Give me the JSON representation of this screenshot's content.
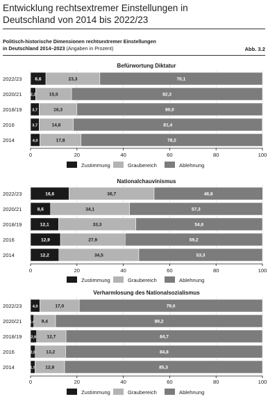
{
  "header": {
    "title_line1": "Entwicklung rechtsextremer Einstellungen in",
    "title_line2": "Deutschland von 2014 bis 2022/23",
    "subtitle_line1": "Politisch-historische Dimensionen rechtsextremer Einstellungen",
    "subtitle_line2": "in Deutschland 2014–2023",
    "subtitle_note": "(Angaben in Prozent)",
    "figure_label": "Abb. 3.2"
  },
  "colors": {
    "zustimmung": "#1a1a1a",
    "graubereich": "#b4b4b4",
    "ablehnung": "#7c7c7c"
  },
  "chart_data": [
    {
      "type": "bar",
      "stacked": true,
      "orientation": "horizontal",
      "title": "Befürwortung Diktatur",
      "categories": [
        "2022/23",
        "2020/21",
        "2018/19",
        "2016",
        "2014"
      ],
      "series": [
        {
          "name": "Zustimmung",
          "values": [
            6.6,
            2.2,
            3.7,
            3.7,
            4.0
          ],
          "labels": [
            "6,6",
            "2,2",
            "3,7",
            "3,7",
            "4,0"
          ]
        },
        {
          "name": "Graubereich",
          "values": [
            23.3,
            15.5,
            16.3,
            14.8,
            17.8
          ],
          "labels": [
            "23,3",
            "15,5",
            "16,3",
            "14,8",
            "17,8"
          ]
        },
        {
          "name": "Ablehnung",
          "values": [
            70.1,
            82.3,
            80.0,
            81.4,
            78.2
          ],
          "labels": [
            "70,1",
            "82,3",
            "80,0",
            "81,4",
            "78,2"
          ]
        }
      ],
      "xlim": [
        0,
        100
      ],
      "xticks": [
        "0",
        "20",
        "40",
        "60",
        "80",
        "100"
      ],
      "grid": true,
      "legend": "bottom"
    },
    {
      "type": "bar",
      "stacked": true,
      "orientation": "horizontal",
      "title": "Nationalchauvinismus",
      "categories": [
        "2022/23",
        "2020/21",
        "2018/19",
        "2016",
        "2014"
      ],
      "series": [
        {
          "name": "Zustimmung",
          "values": [
            16.6,
            8.6,
            12.1,
            12.9,
            12.2
          ],
          "labels": [
            "16,6",
            "8,6",
            "12,1",
            "12,9",
            "12,2"
          ]
        },
        {
          "name": "Graubereich",
          "values": [
            36.7,
            34.1,
            33.3,
            27.9,
            34.5
          ],
          "labels": [
            "36,7",
            "34,1",
            "33,3",
            "27,9",
            "34,5"
          ]
        },
        {
          "name": "Ablehnung",
          "values": [
            46.8,
            57.3,
            54.6,
            59.2,
            53.3
          ],
          "labels": [
            "46,8",
            "57,3",
            "54,6",
            "59,2",
            "53,3"
          ]
        }
      ],
      "xlim": [
        0,
        100
      ],
      "xticks": [
        "0",
        "20",
        "40",
        "60",
        "80",
        "100"
      ],
      "grid": true,
      "legend": "bottom"
    },
    {
      "type": "bar",
      "stacked": true,
      "orientation": "horizontal",
      "title": "Verharmlosung des Nationalsozialismus",
      "categories": [
        "2022/23",
        "2020/21",
        "2018/19",
        "2016",
        "2014"
      ],
      "series": [
        {
          "name": "Zustimmung",
          "values": [
            4.0,
            1.4,
            2.6,
            2.0,
            1.9
          ],
          "labels": [
            "4,0",
            "1,4",
            "2,6",
            "2,0",
            "1,9"
          ]
        },
        {
          "name": "Graubereich",
          "values": [
            17.0,
            9.4,
            12.7,
            13.2,
            12.8
          ],
          "labels": [
            "17,0",
            "9,4",
            "12,7",
            "13,2",
            "12,8"
          ]
        },
        {
          "name": "Ablehnung",
          "values": [
            79.0,
            89.2,
            84.7,
            84.8,
            85.3
          ],
          "labels": [
            "79,0",
            "89,2",
            "84,7",
            "84,8",
            "85,3"
          ]
        }
      ],
      "xlim": [
        0,
        100
      ],
      "xticks": [
        "0",
        "20",
        "40",
        "60",
        "80",
        "100"
      ],
      "grid": true,
      "legend": "bottom"
    }
  ]
}
